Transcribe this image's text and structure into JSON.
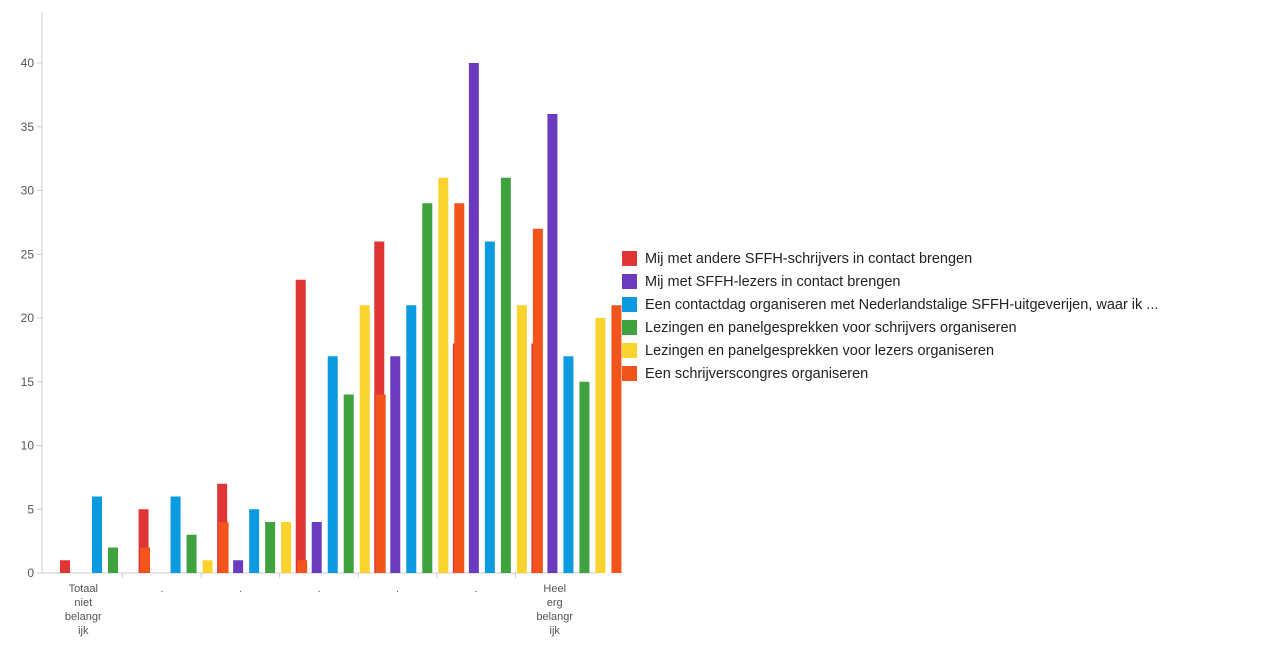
{
  "chart_data": {
    "type": "bar",
    "categories": [
      [
        "Totaal",
        "niet",
        "belangr",
        "ijk"
      ],
      [
        "."
      ],
      [
        "."
      ],
      [
        "."
      ],
      [
        "."
      ],
      [
        "."
      ],
      [
        "Heel",
        "erg",
        "belangr",
        "ijk"
      ]
    ],
    "series": [
      {
        "name": "Mij met andere SFFH-schrijvers in contact brengen",
        "color": "#e03535",
        "values": [
          1,
          5,
          7,
          23,
          26,
          18,
          18
        ]
      },
      {
        "name": "Mij met SFFH-lezers in contact brengen",
        "color": "#6a3bbf",
        "values": [
          0,
          0,
          1,
          4,
          17,
          40,
          36
        ]
      },
      {
        "name": "Een contactdag organiseren met Nederlandstalige SFFH-uitgeverijen, waar ik ...",
        "color": "#0a9ae0",
        "values": [
          6,
          6,
          5,
          17,
          21,
          26,
          17
        ]
      },
      {
        "name": "Lezingen en panelgesprekken voor schrijvers organiseren",
        "color": "#3ea33e",
        "values": [
          2,
          3,
          4,
          14,
          29,
          31,
          15
        ]
      },
      {
        "name": "Lezingen en panelgesprekken voor lezers organiseren",
        "color": "#fad42e",
        "values": [
          0,
          1,
          4,
          21,
          31,
          21,
          20
        ]
      },
      {
        "name": "Een schrijverscongres organiseren",
        "color": "#f2541b",
        "values": [
          2,
          4,
          1,
          14,
          29,
          27,
          21
        ]
      }
    ],
    "y_ticks": [
      0,
      5,
      10,
      15,
      20,
      25,
      30,
      35,
      40
    ],
    "ylim": [
      0,
      40
    ],
    "grid": false,
    "legend_position": "right"
  }
}
